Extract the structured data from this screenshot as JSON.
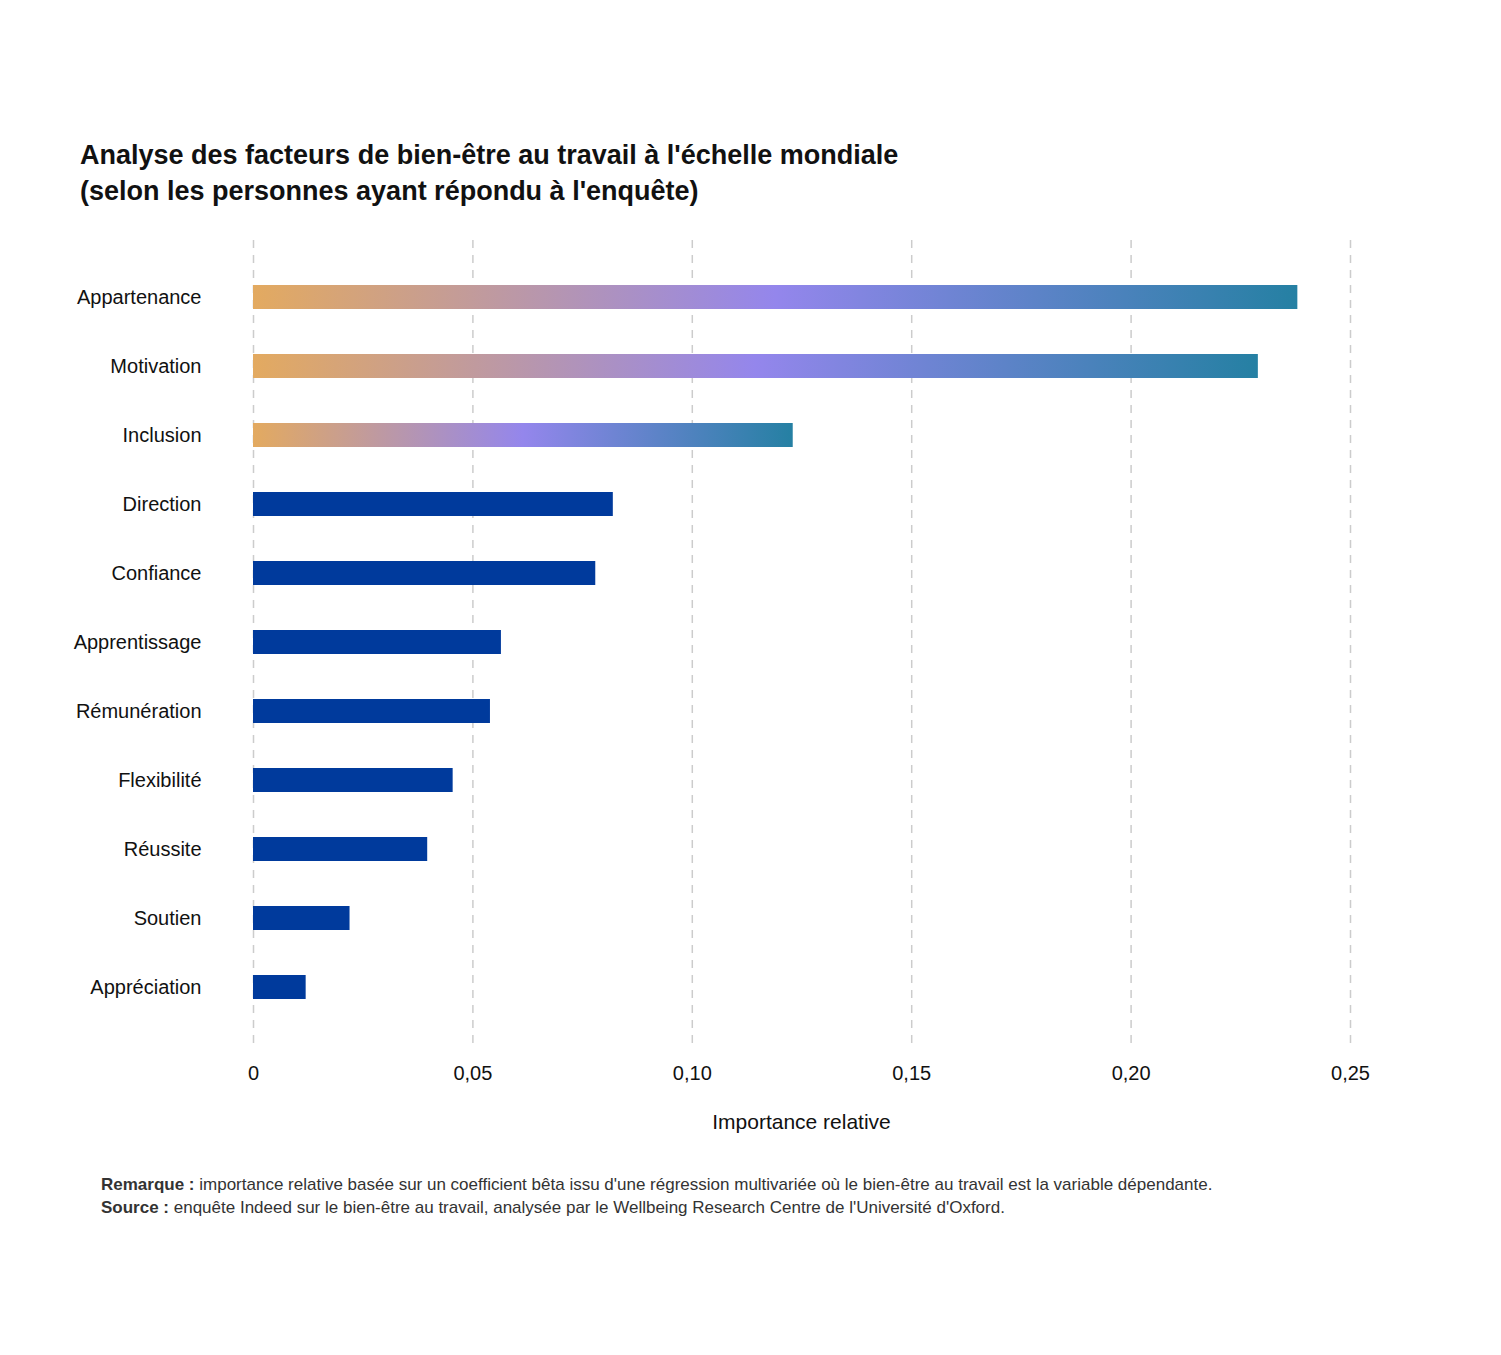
{
  "chart_data": {
    "type": "bar",
    "orientation": "horizontal",
    "title": "Analyse des facteurs de bien-être au travail à l'échelle mondiale\n(selon les personnes ayant répondu à l'enquête)",
    "x_label": "Importance relative",
    "categories": [
      "Appartenance",
      "Motivation",
      "Inclusion",
      "Direction",
      "Confiance",
      "Apprentissage",
      "Rémunération",
      "Flexibilité",
      "Réussite",
      "Soutien",
      "Appréciation"
    ],
    "values": [
      0.238,
      0.229,
      0.123,
      0.082,
      0.078,
      0.0565,
      0.054,
      0.0455,
      0.0397,
      0.022,
      0.012
    ],
    "color": "#003a9c",
    "colors": [
      "#2580a3",
      "#2580a3",
      "#2580a3",
      "#003a9c",
      "#003a9c",
      "#003a9c",
      "#003a9c",
      "#003a9c",
      "#003a9c",
      "#003a9c",
      "#003a9c"
    ],
    "xlim": [
      0,
      0.25
    ],
    "xticks": [
      0,
      {
        "value": 0.05,
        "label": "0,05"
      },
      {
        "value": 0.1,
        "label": "0,10"
      },
      {
        "value": 0.15,
        "label": "0,15"
      },
      {
        "value": 0.2,
        "label": "0,20"
      },
      {
        "value": 0.25,
        "label": "0,25"
      }
    ],
    "grid": true,
    "notes": [
      {
        "label": "Remarque :",
        "text": "importance relative basée sur un coefficient bêta issu d'une régression multivariée où le bien-être au travail est la variable dépendante."
      },
      {
        "label": "Source :",
        "text": "enquête Indeed sur le bien-être au travail, analysée par le Wellbeing Research Centre de l'Université d'Oxford."
      }
    ]
  }
}
